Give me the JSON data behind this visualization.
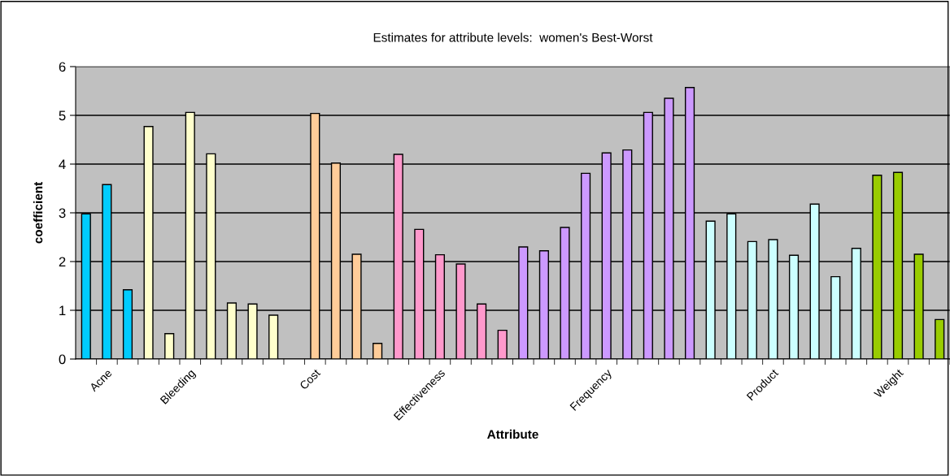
{
  "chart_data": {
    "type": "bar",
    "title": "Estimates for attribute levels:  women's Best-Worst",
    "xlabel": "Attribute",
    "ylabel": "coefficient",
    "categories": [
      null,
      "Acne",
      null,
      null,
      null,
      "Bleeding",
      null,
      null,
      null,
      null,
      null,
      "Cost",
      null,
      null,
      null,
      null,
      null,
      "Effectiveness",
      null,
      null,
      null,
      null,
      null,
      null,
      null,
      "Frequency",
      null,
      null,
      null,
      null,
      null,
      null,
      null,
      "Product",
      null,
      null,
      null,
      null,
      null,
      "Weight",
      null,
      null
    ],
    "values": [
      2.98,
      3.58,
      1.42,
      4.77,
      0.52,
      5.06,
      4.21,
      1.15,
      1.13,
      0.9,
      null,
      5.04,
      4.02,
      2.15,
      0.32,
      4.2,
      2.66,
      2.14,
      1.95,
      1.13,
      0.59,
      2.3,
      2.22,
      2.7,
      3.81,
      4.23,
      4.29,
      5.06,
      5.35,
      5.57,
      2.83,
      2.98,
      2.41,
      2.45,
      2.13,
      3.18,
      1.69,
      2.27,
      3.77,
      3.83,
      2.15,
      0.81
    ],
    "colors": [
      "#00ccff",
      "#00ccff",
      "#00ccff",
      "#ffffcc",
      "#ffffcc",
      "#ffffcc",
      "#ffffcc",
      "#ffffcc",
      "#ffffcc",
      "#ffffcc",
      "#ffffcc",
      "#ffcc99",
      "#ffcc99",
      "#ffcc99",
      "#ffcc99",
      "#ff99cc",
      "#ff99cc",
      "#ff99cc",
      "#ff99cc",
      "#ff99cc",
      "#ff99cc",
      "#cc99ff",
      "#cc99ff",
      "#cc99ff",
      "#cc99ff",
      "#cc99ff",
      "#cc99ff",
      "#cc99ff",
      "#cc99ff",
      "#cc99ff",
      "#ccffff",
      "#ccffff",
      "#ccffff",
      "#ccffff",
      "#ccffff",
      "#ccffff",
      "#ccffff",
      "#ccffff",
      "#99cc00",
      "#99cc00",
      "#99cc00",
      "#99cc00"
    ],
    "ylim": [
      0,
      6
    ],
    "yticks": [
      0,
      1,
      2,
      3,
      4,
      5,
      6
    ],
    "grid": "y"
  }
}
